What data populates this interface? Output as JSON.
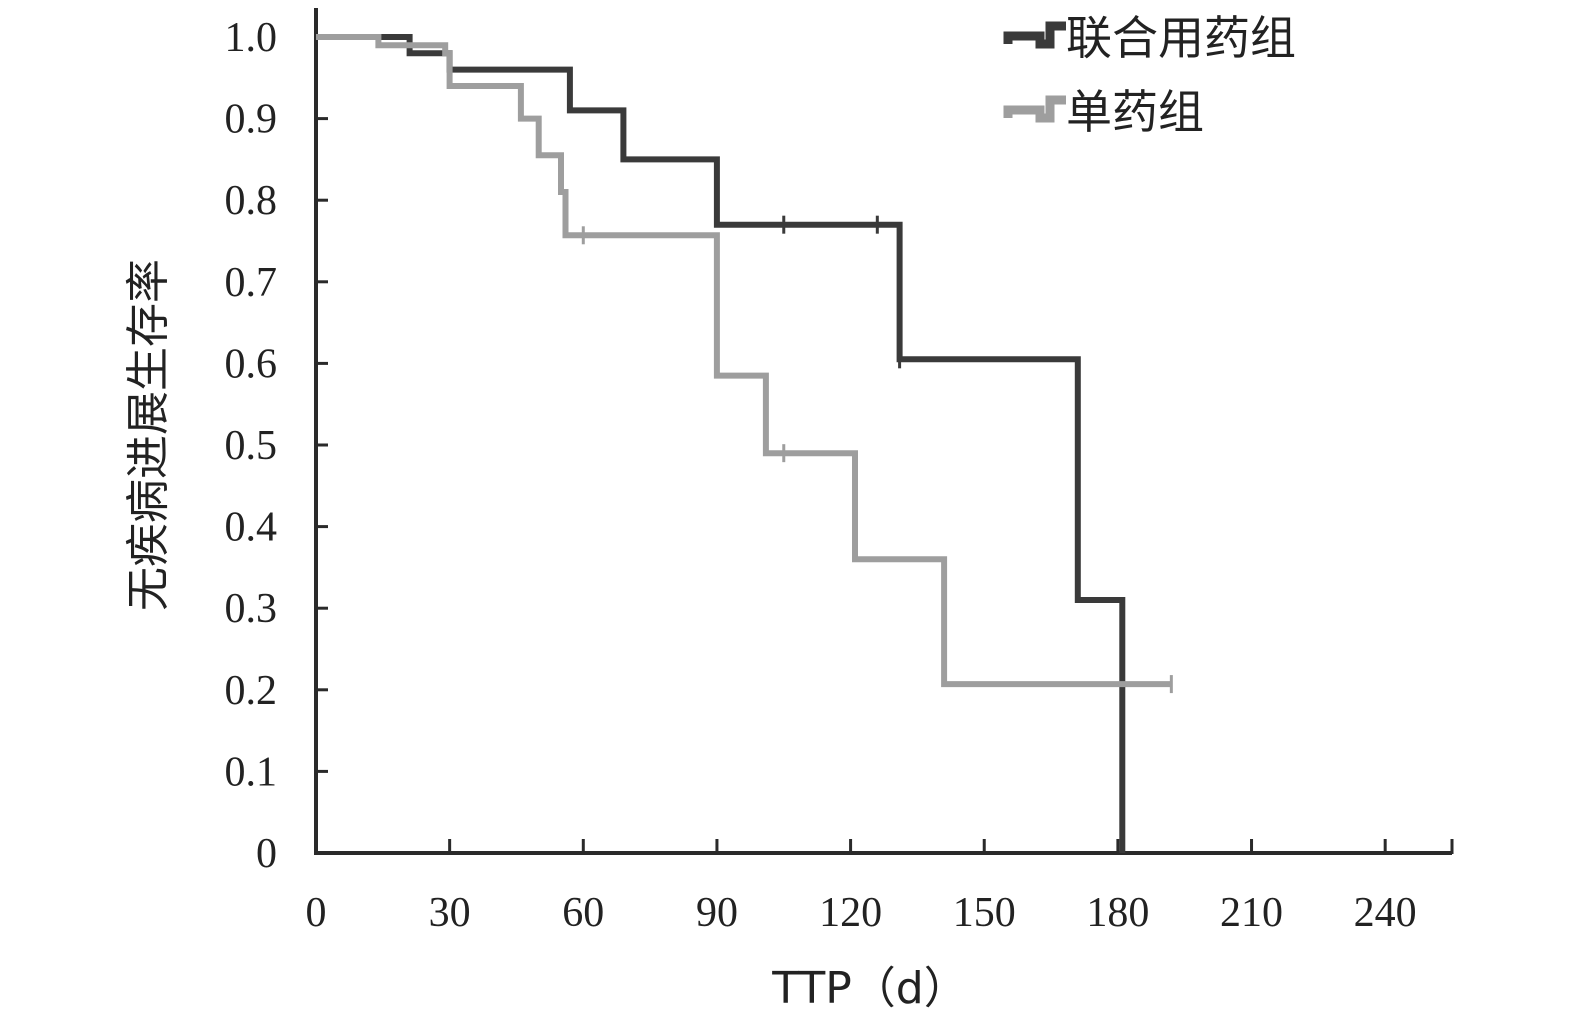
{
  "chart_data": {
    "type": "line",
    "step": true,
    "title": "",
    "xlabel": "TTP（d）",
    "ylabel": "无疾病进展生存率",
    "xlim": [
      0,
      255
    ],
    "ylim": [
      0,
      1.0
    ],
    "x_ticks": [
      0,
      30,
      60,
      90,
      120,
      150,
      180,
      210,
      240
    ],
    "x_tick_labels": [
      "0",
      "30",
      "60",
      "90",
      "120",
      "150",
      "180",
      "210",
      "240"
    ],
    "y_ticks": [
      0,
      0.1,
      0.2,
      0.3,
      0.4,
      0.5,
      0.6,
      0.7,
      0.8,
      0.9,
      1.0
    ],
    "y_tick_labels": [
      "0",
      "0.1",
      "0.2",
      "0.3",
      "0.4",
      "0.5",
      "0.6",
      "0.7",
      "0.8",
      "0.9",
      "1.0"
    ],
    "grid": false,
    "legend_position": "top-right",
    "series": [
      {
        "name": "联合用药组",
        "color": "#3a3a3a",
        "points": [
          [
            0,
            1.0
          ],
          [
            21,
            1.0
          ],
          [
            21,
            0.98
          ],
          [
            30,
            0.98
          ],
          [
            30,
            0.96
          ],
          [
            57,
            0.96
          ],
          [
            57,
            0.91
          ],
          [
            69,
            0.91
          ],
          [
            69,
            0.85
          ],
          [
            90,
            0.85
          ],
          [
            90,
            0.77
          ],
          [
            131,
            0.77
          ],
          [
            131,
            0.605
          ],
          [
            171,
            0.605
          ],
          [
            171,
            0.31
          ],
          [
            181,
            0.31
          ],
          [
            181,
            0.0
          ]
        ],
        "censored": [
          [
            105,
            0.77
          ],
          [
            126,
            0.77
          ],
          [
            131,
            0.605
          ]
        ]
      },
      {
        "name": "单药组",
        "color": "#9e9e9e",
        "points": [
          [
            0,
            1.0
          ],
          [
            14,
            1.0
          ],
          [
            14,
            0.99
          ],
          [
            29,
            0.99
          ],
          [
            29,
            0.98
          ],
          [
            30,
            0.98
          ],
          [
            30,
            0.94
          ],
          [
            46,
            0.94
          ],
          [
            46,
            0.9
          ],
          [
            50,
            0.9
          ],
          [
            50,
            0.855
          ],
          [
            55,
            0.855
          ],
          [
            55,
            0.81
          ],
          [
            56,
            0.81
          ],
          [
            56,
            0.757
          ],
          [
            90,
            0.757
          ],
          [
            90,
            0.585
          ],
          [
            101,
            0.585
          ],
          [
            101,
            0.49
          ],
          [
            121,
            0.49
          ],
          [
            121,
            0.36
          ],
          [
            141,
            0.36
          ],
          [
            141,
            0.207
          ],
          [
            192,
            0.207
          ]
        ],
        "censored": [
          [
            60,
            0.757
          ],
          [
            105,
            0.49
          ],
          [
            192,
            0.207
          ]
        ]
      }
    ]
  }
}
